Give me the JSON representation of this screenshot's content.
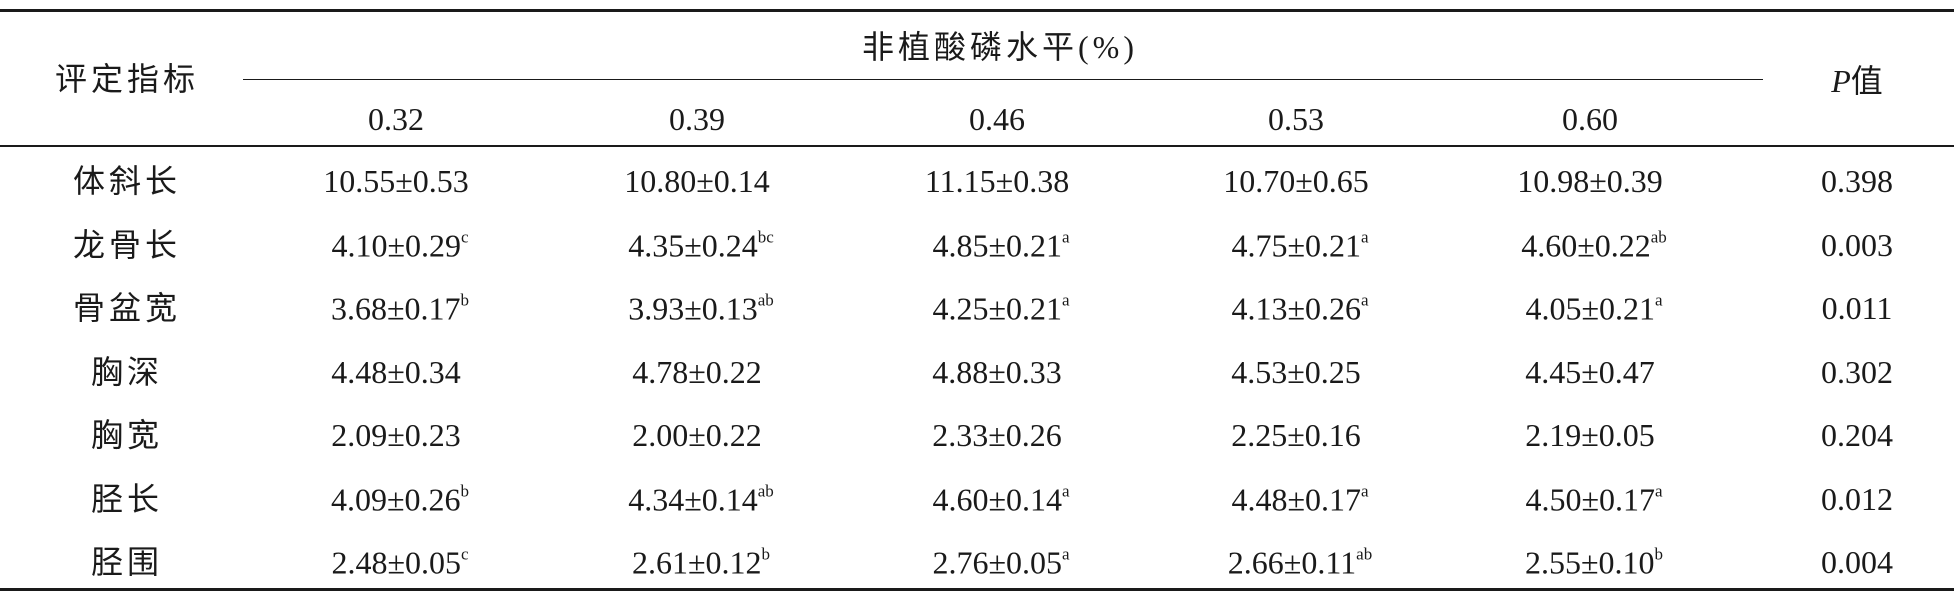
{
  "header": {
    "label": "评定指标",
    "group": "非植酸磷水平(%)",
    "levels": [
      "0.32",
      "0.39",
      "0.46",
      "0.53",
      "0.60"
    ],
    "p_italic": "P",
    "p_text": "值"
  },
  "rows": [
    {
      "name": "体斜长",
      "cells": [
        {
          "text": "10.55±0.53"
        },
        {
          "text": "10.80±0.14"
        },
        {
          "text": "11.15±0.38"
        },
        {
          "text": "10.70±0.65"
        },
        {
          "text": "10.98±0.39"
        }
      ],
      "p": "0.398"
    },
    {
      "name": "龙骨长",
      "cells": [
        {
          "text": "4.10±0.29",
          "sup": "c"
        },
        {
          "text": "4.35±0.24",
          "sup": "bc"
        },
        {
          "text": "4.85±0.21",
          "sup": "a"
        },
        {
          "text": "4.75±0.21",
          "sup": "a"
        },
        {
          "text": "4.60±0.22",
          "sup": "ab"
        }
      ],
      "p": "0.003"
    },
    {
      "name": "骨盆宽",
      "cells": [
        {
          "text": "3.68±0.17",
          "sup": "b"
        },
        {
          "text": "3.93±0.13",
          "sup": "ab"
        },
        {
          "text": "4.25±0.21",
          "sup": "a"
        },
        {
          "text": "4.13±0.26",
          "sup": "a"
        },
        {
          "text": "4.05±0.21",
          "sup": "a"
        }
      ],
      "p": "0.011"
    },
    {
      "name": "胸深",
      "cells": [
        {
          "text": "4.48±0.34"
        },
        {
          "text": "4.78±0.22"
        },
        {
          "text": "4.88±0.33"
        },
        {
          "text": "4.53±0.25"
        },
        {
          "text": "4.45±0.47"
        }
      ],
      "p": "0.302"
    },
    {
      "name": "胸宽",
      "cells": [
        {
          "text": "2.09±0.23"
        },
        {
          "text": "2.00±0.22"
        },
        {
          "text": "2.33±0.26"
        },
        {
          "text": "2.25±0.16"
        },
        {
          "text": "2.19±0.05"
        }
      ],
      "p": "0.204"
    },
    {
      "name": "胫长",
      "cells": [
        {
          "text": "4.09±0.26",
          "sup": "b"
        },
        {
          "text": "4.34±0.14",
          "sup": "ab"
        },
        {
          "text": "4.60±0.14",
          "sup": "a"
        },
        {
          "text": "4.48±0.17",
          "sup": "a"
        },
        {
          "text": "4.50±0.17",
          "sup": "a"
        }
      ],
      "p": "0.012"
    },
    {
      "name": "胫围",
      "cells": [
        {
          "text": "2.48±0.05",
          "sup": "c"
        },
        {
          "text": "2.61±0.12",
          "sup": "b"
        },
        {
          "text": "2.76±0.05",
          "sup": "a"
        },
        {
          "text": "2.66±0.11",
          "sup": "ab"
        },
        {
          "text": "2.55±0.10",
          "sup": "b"
        }
      ],
      "p": "0.004"
    }
  ]
}
